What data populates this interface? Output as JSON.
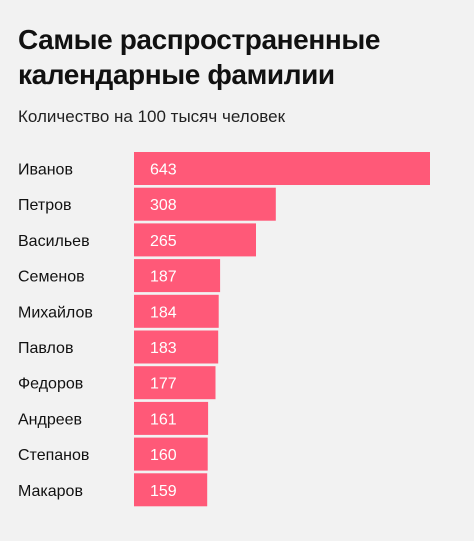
{
  "title": "Самые распространенные\nкалендарные фамилии",
  "subtitle": "Количество на 100 тысяч человек",
  "colors": {
    "bar": "#ff5978",
    "bar_label": "#ffffff",
    "category_label": "#111111",
    "background": "#f2f2f2"
  },
  "chart_data": {
    "type": "bar",
    "orientation": "horizontal",
    "title": "Самые распространенные календарные фамилии",
    "subtitle": "Количество на 100 тысяч человек",
    "categories": [
      "Иванов",
      "Петров",
      "Васильев",
      "Семенов",
      "Михайлов",
      "Павлов",
      "Федоров",
      "Андреев",
      "Степанов",
      "Макаров"
    ],
    "values": [
      643,
      308,
      265,
      187,
      184,
      183,
      177,
      161,
      160,
      159
    ],
    "data_labels": [
      "643",
      "308",
      "265",
      "187",
      "184",
      "183",
      "177",
      "161",
      "160",
      "159"
    ],
    "xlim": [
      0,
      643
    ],
    "grid": false,
    "legend": "none"
  }
}
